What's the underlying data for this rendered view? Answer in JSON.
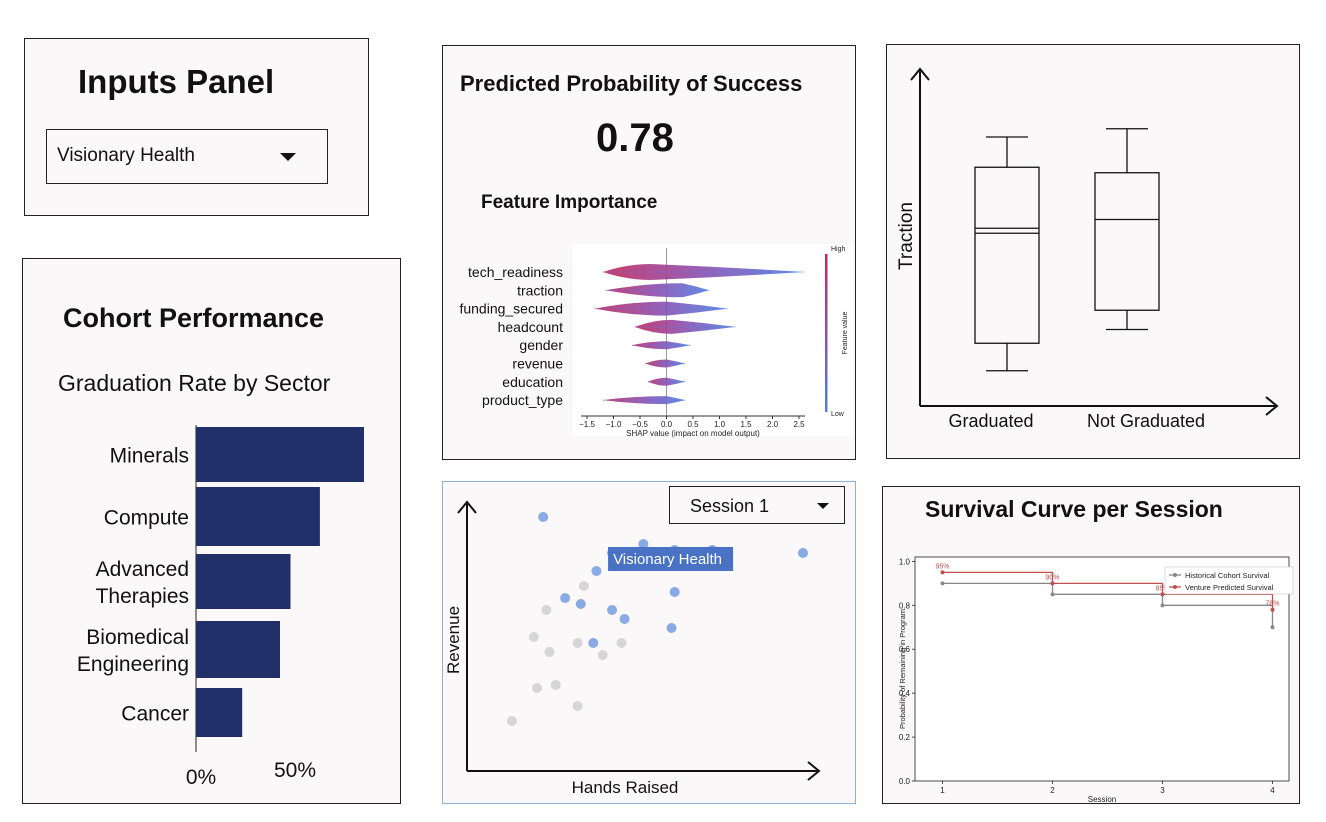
{
  "inputs_panel": {
    "title": "Inputs Panel",
    "venture_select": {
      "value": "Visionary Health",
      "icon": "caret-down-icon"
    }
  },
  "cohort_performance": {
    "title": "Cohort Performance",
    "chart_title": "Graduation Rate by Sector",
    "tick_labels": [
      "0%",
      "50%"
    ],
    "sector_labels": [
      [
        "Minerals"
      ],
      [
        "Compute"
      ],
      [
        "Advanced",
        "Therapies"
      ],
      [
        "Biomedical",
        "Engineering"
      ],
      [
        "Cancer"
      ]
    ]
  },
  "prediction": {
    "title": "Predicted Probability of Success",
    "value": "0.78",
    "feature_title": "Feature Importance"
  },
  "traction_box": {
    "ylabel": "Traction"
  },
  "session_scatter": {
    "session_select": {
      "value": "Session 1",
      "icon": "caret-down-icon"
    },
    "highlight_label": "Visionary Health"
  },
  "survival": {
    "title": "Survival Curve per Session"
  },
  "chart_data": [
    {
      "type": "bar",
      "orientation": "horizontal",
      "title": "Graduation Rate by Sector",
      "categories": [
        "Minerals",
        "Compute",
        "Advanced Therapies",
        "Biomedical Engineering",
        "Cancer"
      ],
      "values": [
        80,
        59,
        45,
        40,
        22
      ],
      "xlim": [
        0,
        100
      ],
      "xticks": [
        "0%",
        "50%"
      ],
      "color": "#22306a"
    },
    {
      "type": "scatter",
      "title": "",
      "xlabel": "SHAP value (impact on model output)",
      "features": [
        "tech_readiness",
        "traction",
        "funding_secured",
        "headcount",
        "gender",
        "revenue",
        "education",
        "product_type"
      ],
      "xlim": [
        -1.5,
        2.75
      ],
      "xticks": [
        -1.5,
        -1.0,
        -0.5,
        0.0,
        0.5,
        1.0,
        1.5,
        2.0,
        2.5
      ],
      "tick_labels": [
        "−1.5",
        "−1.0",
        "−0.5",
        "0.0",
        "0.5",
        "1.0",
        "1.5",
        "2.0",
        "2.5"
      ],
      "colorbar_label": "Feature value",
      "colorbar_high": "High",
      "colorbar_low": "Low",
      "colors": {
        "high": "#c2285f",
        "low": "#4f7fe3"
      },
      "spread": [
        {
          "feature": "tech_readiness",
          "min": -1.2,
          "max": 2.6,
          "center": -0.3
        },
        {
          "feature": "traction",
          "min": -1.15,
          "max": 0.8,
          "center": 0.3
        },
        {
          "feature": "funding_secured",
          "min": -1.35,
          "max": 1.15,
          "center": 0.0
        },
        {
          "feature": "headcount",
          "min": -0.6,
          "max": 1.3,
          "center": 0.1
        },
        {
          "feature": "gender",
          "min": -0.65,
          "max": 0.45,
          "center": 0.0
        },
        {
          "feature": "revenue",
          "min": -0.4,
          "max": 0.35,
          "center": 0.0
        },
        {
          "feature": "education",
          "min": -0.35,
          "max": 0.35,
          "center": 0.0
        },
        {
          "feature": "product_type",
          "min": -1.2,
          "max": 0.35,
          "center": 0.0
        }
      ]
    },
    {
      "type": "box",
      "ylabel": "Traction",
      "categories": [
        "Graduated",
        "Not Graduated"
      ],
      "series": [
        {
          "whisker_low": 0.07,
          "q1": 0.17,
          "median": 0.57,
          "q3": 0.81,
          "whisker_high": 0.92
        },
        {
          "whisker_low": 0.22,
          "q1": 0.29,
          "median": 0.62,
          "q3": 0.79,
          "whisker_high": 0.95
        }
      ]
    },
    {
      "type": "scatter",
      "xlabel": "Hands Raised",
      "ylabel": "Revenue",
      "xlim": [
        0,
        1
      ],
      "ylim": [
        0,
        1
      ],
      "series": [
        {
          "color": "#8aaae6",
          "points": [
            [
              0.17,
              0.85
            ],
            [
              0.39,
              0.73
            ],
            [
              0.49,
              0.76
            ],
            [
              0.59,
              0.74
            ],
            [
              0.71,
              0.74
            ],
            [
              0.63,
              0.88
            ],
            [
              1.0,
              0.73
            ],
            [
              0.34,
              0.67
            ],
            [
              0.59,
              0.6
            ],
            [
              0.24,
              0.58
            ],
            [
              0.29,
              0.56
            ],
            [
              0.39,
              0.54
            ],
            [
              0.43,
              0.51
            ],
            [
              0.58,
              0.48
            ],
            [
              0.33,
              0.43
            ]
          ]
        },
        {
          "color": "#d6d6d6",
          "points": [
            [
              0.3,
              0.62
            ],
            [
              0.18,
              0.54
            ],
            [
              0.14,
              0.45
            ],
            [
              0.19,
              0.4
            ],
            [
              0.28,
              0.43
            ],
            [
              0.36,
              0.39
            ],
            [
              0.42,
              0.43
            ],
            [
              0.21,
              0.29
            ],
            [
              0.15,
              0.28
            ],
            [
              0.28,
              0.22
            ],
            [
              0.07,
              0.17
            ]
          ]
        }
      ],
      "highlight": {
        "x": 0.39,
        "y": 0.73,
        "label": "Visionary Health"
      }
    },
    {
      "type": "line",
      "step": true,
      "xlabel": "Session",
      "ylabel": "Probability of Remaining in Program",
      "x": [
        1,
        2,
        3,
        4
      ],
      "xlim": [
        0.75,
        4.15
      ],
      "ylim": [
        0,
        1.02
      ],
      "yticks": [
        "0.0",
        "0.2",
        "0.4",
        "0.6",
        "0.8",
        "1.0"
      ],
      "series": [
        {
          "name": "Historical Cohort Survival",
          "color": "#888888",
          "values": [
            0.9,
            0.85,
            0.8,
            0.7
          ]
        },
        {
          "name": "Venture Predicted Survival",
          "color": "#c0504d",
          "values": [
            0.95,
            0.9,
            0.85,
            0.78
          ],
          "labels": [
            "95%",
            "90%",
            "85%",
            "78%"
          ]
        }
      ]
    }
  ]
}
